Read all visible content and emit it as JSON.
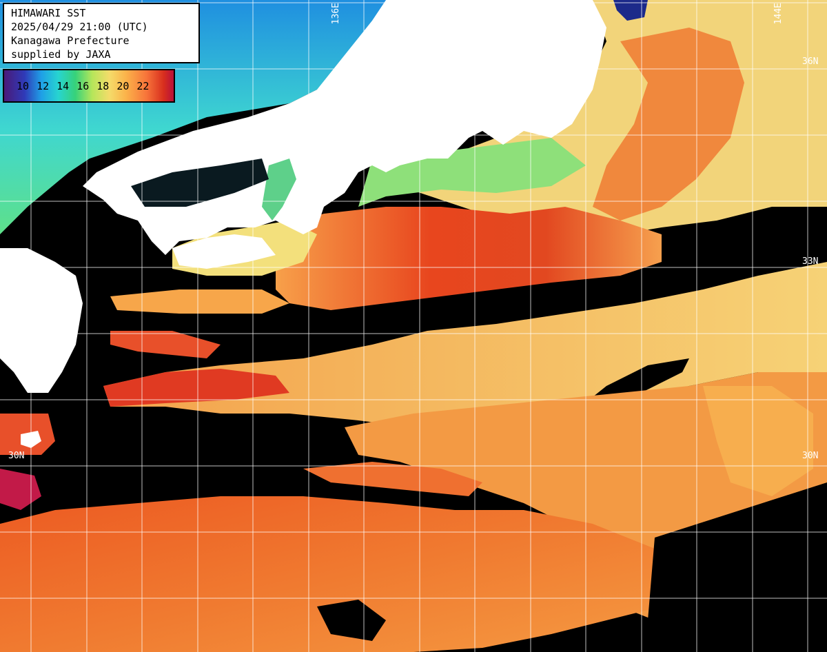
{
  "header": {
    "title": "HIMAWARI SST",
    "datetime": "2025/04/29 21:00 (UTC)",
    "organization": "Kanagawa Prefecture",
    "credit": "supplied by JAXA"
  },
  "legend": {
    "values": [
      "10",
      "12",
      "14",
      "16",
      "18",
      "20",
      "22"
    ],
    "colors": [
      "#4a1a78",
      "#1fa0e6",
      "#37d27a",
      "#f4dc6a",
      "#fbb24a",
      "#f7743a",
      "#d82f1e"
    ]
  },
  "axis_labels": {
    "lon_136": "136E",
    "lon_144": "144E",
    "lat_36": "36N",
    "lat_33": "33N",
    "lat_30_left": "30N",
    "lat_30_right": "30N"
  },
  "colors": {
    "land": "#ffffff",
    "cloud_mask": "#000000",
    "grid": "#ffffff"
  }
}
